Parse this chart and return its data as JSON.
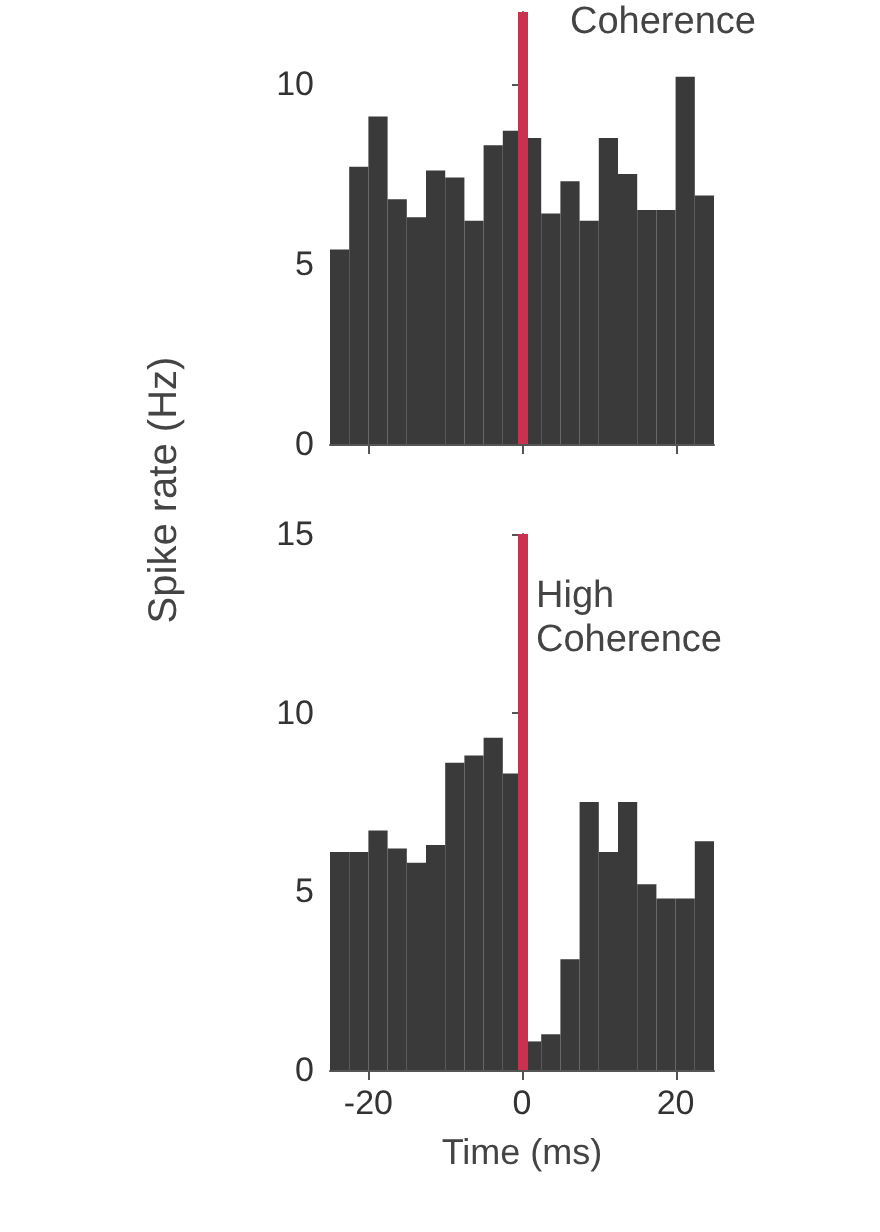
{
  "chart_data": [
    {
      "type": "histogram",
      "bins": [
        -25,
        -22.5,
        -20,
        -17.5,
        -15,
        -12.5,
        -10,
        -7.5,
        -5,
        -2.5,
        0,
        2.5,
        5,
        7.5,
        10,
        12.5,
        15,
        17.5,
        20,
        22.5,
        25
      ],
      "values": [
        5.4,
        7.7,
        9.1,
        6.8,
        6.3,
        7.6,
        7.4,
        6.2,
        8.3,
        8.7,
        8.5,
        6.4,
        7.3,
        6.2,
        8.5,
        7.5,
        6.5,
        6.5,
        10.2,
        6.9
      ],
      "color": "#3a3a3a",
      "xlim": [
        -25,
        25
      ],
      "xticks": [
        {
          "value": -20,
          "label": null
        },
        {
          "value": 0,
          "label": null
        },
        {
          "value": 20,
          "label": null
        }
      ],
      "ylim": [
        0,
        12
      ],
      "yticks": [
        0,
        5,
        10
      ],
      "tick_labels": "y",
      "grid": false,
      "ref_lines": [
        {
          "axis": "x",
          "value": 0,
          "color": "#c8324e"
        }
      ],
      "annotations": [
        "Coherence"
      ]
    },
    {
      "type": "histogram",
      "bins": [
        -25,
        -22.5,
        -20,
        -17.5,
        -15,
        -12.5,
        -10,
        -7.5,
        -5,
        -2.5,
        0,
        2.5,
        5,
        7.5,
        10,
        12.5,
        15,
        17.5,
        20,
        22.5,
        25
      ],
      "values": [
        6.1,
        6.1,
        6.7,
        6.2,
        5.8,
        6.3,
        8.6,
        8.8,
        9.3,
        8.3,
        0.8,
        1.0,
        3.1,
        7.5,
        6.1,
        7.5,
        5.2,
        4.8,
        4.8,
        6.4
      ],
      "color": "#3a3a3a",
      "xlim": [
        -25,
        25
      ],
      "xticks": [
        -20,
        0,
        20
      ],
      "ylim": [
        0,
        15
      ],
      "yticks": [
        0,
        5,
        10,
        15
      ],
      "grid": false,
      "xlabel": "Time (ms)",
      "ylabel": "Spike rate (Hz)",
      "ref_lines": [
        {
          "axis": "x",
          "value": 0,
          "color": "#c8324e"
        }
      ],
      "annotations": [
        "High Coherence"
      ]
    }
  ]
}
